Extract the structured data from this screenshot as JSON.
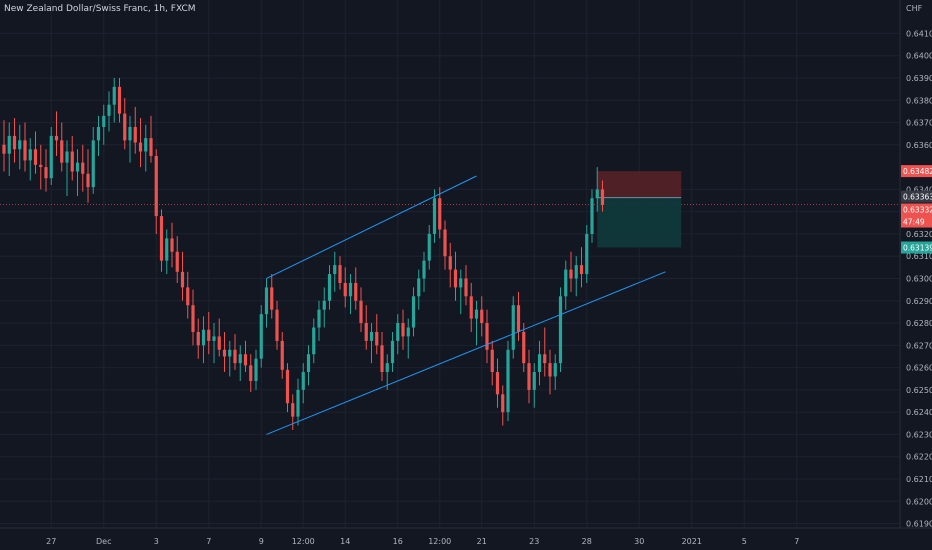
{
  "header": {
    "title": "New Zealand Dollar/Swiss Franc, 1h, FXCM",
    "currency": "CHF",
    "settings_icon": "dropdown-icon"
  },
  "colors": {
    "background": "#131722",
    "grid": "#1e2230",
    "bull": "#26a69a",
    "bear": "#ef5350",
    "trendline": "#2196f3",
    "axis_text": "#b2b5be",
    "stop_zone": "#5a2227",
    "target_zone": "#0f3a3b",
    "entry_line": "#6a8fa8"
  },
  "chart_data": {
    "type": "candlestick",
    "symbol": "NZDCHF",
    "timeframe": "1h",
    "ylim": [
      0.6188,
      0.6425
    ],
    "y_ticks": [
      "0.64100",
      "0.64000",
      "0.63900",
      "0.63800",
      "0.63700",
      "0.63600",
      "0.63400",
      "0.63300",
      "0.63200",
      "0.63100",
      "0.63000",
      "0.62900",
      "0.62800",
      "0.62700",
      "0.62600",
      "0.62500",
      "0.62400",
      "0.62300",
      "0.62200",
      "0.62100",
      "0.62000",
      "0.61900"
    ],
    "x_ticks": [
      "27",
      "Dec",
      "3",
      "7",
      "9",
      "12:00",
      "14",
      "16",
      "12:00",
      "21",
      "23",
      "28",
      "30",
      "2021",
      "5",
      "7"
    ],
    "x_tick_index": [
      9,
      19,
      29,
      39,
      49,
      57,
      65,
      75,
      83,
      91,
      101,
      111,
      121,
      131,
      141,
      151
    ],
    "price_labels": {
      "stop": "0.63482",
      "entry": "0.63363",
      "last": "0.63332",
      "countdown": "47:49",
      "target": "0.63139"
    },
    "trendlines": [
      {
        "from": [
          50,
          0.63
        ],
        "to": [
          90,
          0.6346
        ]
      },
      {
        "from": [
          50,
          0.623
        ],
        "to": [
          126,
          0.6303
        ]
      }
    ],
    "position": {
      "side": "short",
      "start_index": 113,
      "end_index": 129,
      "entry": 0.63363,
      "stop": 0.63482,
      "target": 0.63139
    },
    "series": [
      {
        "name": "NZDCHF",
        "ohlc": [
          [
            0.636,
            0.6371,
            0.6348,
            0.6356
          ],
          [
            0.6356,
            0.637,
            0.6346,
            0.6364
          ],
          [
            0.6364,
            0.6372,
            0.6352,
            0.6358
          ],
          [
            0.6358,
            0.6369,
            0.6349,
            0.6362
          ],
          [
            0.6362,
            0.637,
            0.6348,
            0.6353
          ],
          [
            0.6353,
            0.6363,
            0.6344,
            0.6358
          ],
          [
            0.6358,
            0.6366,
            0.6347,
            0.6351
          ],
          [
            0.6351,
            0.636,
            0.634,
            0.635
          ],
          [
            0.635,
            0.6358,
            0.6339,
            0.6345
          ],
          [
            0.6345,
            0.6368,
            0.6342,
            0.6364
          ],
          [
            0.6364,
            0.6375,
            0.6355,
            0.6362
          ],
          [
            0.6362,
            0.637,
            0.6348,
            0.6352
          ],
          [
            0.6352,
            0.6362,
            0.6337,
            0.6357
          ],
          [
            0.6357,
            0.6364,
            0.6344,
            0.6348
          ],
          [
            0.6348,
            0.6358,
            0.6337,
            0.6352
          ],
          [
            0.6352,
            0.636,
            0.6339,
            0.6347
          ],
          [
            0.6347,
            0.6358,
            0.6334,
            0.6341
          ],
          [
            0.6341,
            0.6368,
            0.6338,
            0.6362
          ],
          [
            0.6362,
            0.6373,
            0.6355,
            0.6368
          ],
          [
            0.6368,
            0.6378,
            0.636,
            0.6373
          ],
          [
            0.6373,
            0.6384,
            0.6366,
            0.6378
          ],
          [
            0.6378,
            0.639,
            0.637,
            0.6386
          ],
          [
            0.6386,
            0.639,
            0.637,
            0.6374
          ],
          [
            0.6374,
            0.6381,
            0.6358,
            0.6362
          ],
          [
            0.6362,
            0.6373,
            0.6352,
            0.6368
          ],
          [
            0.6368,
            0.6377,
            0.6356,
            0.6361
          ],
          [
            0.6361,
            0.6372,
            0.635,
            0.6357
          ],
          [
            0.6357,
            0.6369,
            0.6348,
            0.6363
          ],
          [
            0.6363,
            0.6373,
            0.6352,
            0.6355
          ],
          [
            0.6355,
            0.6358,
            0.632,
            0.6328
          ],
          [
            0.6328,
            0.6331,
            0.6303,
            0.6308
          ],
          [
            0.6308,
            0.6322,
            0.6302,
            0.6318
          ],
          [
            0.6318,
            0.6325,
            0.6305,
            0.6312
          ],
          [
            0.6312,
            0.6319,
            0.6298,
            0.6303
          ],
          [
            0.6303,
            0.6312,
            0.629,
            0.6296
          ],
          [
            0.6296,
            0.6303,
            0.6282,
            0.6288
          ],
          [
            0.6288,
            0.6295,
            0.627,
            0.6276
          ],
          [
            0.6276,
            0.6282,
            0.6264,
            0.627
          ],
          [
            0.627,
            0.6283,
            0.6262,
            0.6277
          ],
          [
            0.6277,
            0.6285,
            0.6266,
            0.6272
          ],
          [
            0.6272,
            0.628,
            0.6262,
            0.6274
          ],
          [
            0.6274,
            0.6282,
            0.6265,
            0.6268
          ],
          [
            0.6268,
            0.6276,
            0.6258,
            0.6265
          ],
          [
            0.6265,
            0.6272,
            0.6256,
            0.6268
          ],
          [
            0.6268,
            0.6275,
            0.6259,
            0.6262
          ],
          [
            0.6262,
            0.627,
            0.6254,
            0.6266
          ],
          [
            0.6266,
            0.6272,
            0.6258,
            0.6261
          ],
          [
            0.6261,
            0.6266,
            0.6249,
            0.6254
          ],
          [
            0.6254,
            0.6268,
            0.625,
            0.6264
          ],
          [
            0.6264,
            0.6288,
            0.626,
            0.6284
          ],
          [
            0.6284,
            0.63,
            0.6278,
            0.6296
          ],
          [
            0.6296,
            0.6302,
            0.6282,
            0.6286
          ],
          [
            0.6286,
            0.629,
            0.6268,
            0.6272
          ],
          [
            0.6272,
            0.6276,
            0.6255,
            0.6259
          ],
          [
            0.6259,
            0.6262,
            0.624,
            0.6244
          ],
          [
            0.6244,
            0.6248,
            0.6232,
            0.6238
          ],
          [
            0.6238,
            0.6255,
            0.6234,
            0.625
          ],
          [
            0.625,
            0.6262,
            0.6244,
            0.6258
          ],
          [
            0.6258,
            0.627,
            0.6252,
            0.6266
          ],
          [
            0.6266,
            0.6282,
            0.6262,
            0.6278
          ],
          [
            0.6278,
            0.629,
            0.6272,
            0.6286
          ],
          [
            0.6286,
            0.6296,
            0.6278,
            0.629
          ],
          [
            0.629,
            0.6306,
            0.6286,
            0.6302
          ],
          [
            0.6302,
            0.6312,
            0.6294,
            0.6306
          ],
          [
            0.6306,
            0.631,
            0.6295,
            0.6298
          ],
          [
            0.6298,
            0.6305,
            0.6287,
            0.6292
          ],
          [
            0.6292,
            0.6302,
            0.6284,
            0.6298
          ],
          [
            0.6298,
            0.6305,
            0.6286,
            0.629
          ],
          [
            0.629,
            0.6296,
            0.6276,
            0.628
          ],
          [
            0.628,
            0.6288,
            0.6268,
            0.6272
          ],
          [
            0.6272,
            0.628,
            0.6262,
            0.6276
          ],
          [
            0.6276,
            0.6284,
            0.6266,
            0.627
          ],
          [
            0.627,
            0.6276,
            0.6254,
            0.6258
          ],
          [
            0.6258,
            0.6266,
            0.625,
            0.6262
          ],
          [
            0.6262,
            0.6276,
            0.6258,
            0.6272
          ],
          [
            0.6272,
            0.6284,
            0.6266,
            0.628
          ],
          [
            0.628,
            0.6286,
            0.6268,
            0.6274
          ],
          [
            0.6274,
            0.6282,
            0.6264,
            0.6278
          ],
          [
            0.6278,
            0.6296,
            0.6274,
            0.6292
          ],
          [
            0.6292,
            0.6304,
            0.6286,
            0.63
          ],
          [
            0.63,
            0.6312,
            0.6294,
            0.6308
          ],
          [
            0.6308,
            0.6324,
            0.6304,
            0.632
          ],
          [
            0.632,
            0.634,
            0.6316,
            0.6336
          ],
          [
            0.6336,
            0.6341,
            0.6318,
            0.6322
          ],
          [
            0.6322,
            0.6326,
            0.6304,
            0.631
          ],
          [
            0.631,
            0.6316,
            0.6296,
            0.6304
          ],
          [
            0.6304,
            0.6312,
            0.629,
            0.6296
          ],
          [
            0.6296,
            0.6304,
            0.6284,
            0.63
          ],
          [
            0.63,
            0.6306,
            0.6288,
            0.6292
          ],
          [
            0.6292,
            0.6298,
            0.6276,
            0.6282
          ],
          [
            0.6282,
            0.629,
            0.627,
            0.6286
          ],
          [
            0.6286,
            0.6292,
            0.6274,
            0.628
          ],
          [
            0.628,
            0.6286,
            0.6262,
            0.6268
          ],
          [
            0.6268,
            0.6272,
            0.6252,
            0.6258
          ],
          [
            0.6258,
            0.6264,
            0.6242,
            0.6248
          ],
          [
            0.6248,
            0.6252,
            0.6234,
            0.624
          ],
          [
            0.624,
            0.6272,
            0.6236,
            0.6268
          ],
          [
            0.6268,
            0.6292,
            0.6264,
            0.6288
          ],
          [
            0.6288,
            0.6294,
            0.6272,
            0.6276
          ],
          [
            0.6276,
            0.628,
            0.6258,
            0.6262
          ],
          [
            0.6262,
            0.6268,
            0.6244,
            0.625
          ],
          [
            0.625,
            0.6262,
            0.6242,
            0.6258
          ],
          [
            0.6258,
            0.6272,
            0.6252,
            0.6266
          ],
          [
            0.6266,
            0.6278,
            0.6256,
            0.6262
          ],
          [
            0.6262,
            0.6268,
            0.6248,
            0.6256
          ],
          [
            0.6256,
            0.6266,
            0.625,
            0.6262
          ],
          [
            0.6262,
            0.6296,
            0.6258,
            0.6292
          ],
          [
            0.6292,
            0.6308,
            0.6286,
            0.6304
          ],
          [
            0.6304,
            0.6312,
            0.6294,
            0.63
          ],
          [
            0.63,
            0.631,
            0.6292,
            0.6306
          ],
          [
            0.6306,
            0.6314,
            0.6296,
            0.6302
          ],
          [
            0.6302,
            0.6324,
            0.6298,
            0.632
          ],
          [
            0.632,
            0.634,
            0.6316,
            0.6336
          ],
          [
            0.6336,
            0.635,
            0.633,
            0.634
          ],
          [
            0.634,
            0.6344,
            0.633,
            0.6333
          ]
        ]
      }
    ]
  }
}
